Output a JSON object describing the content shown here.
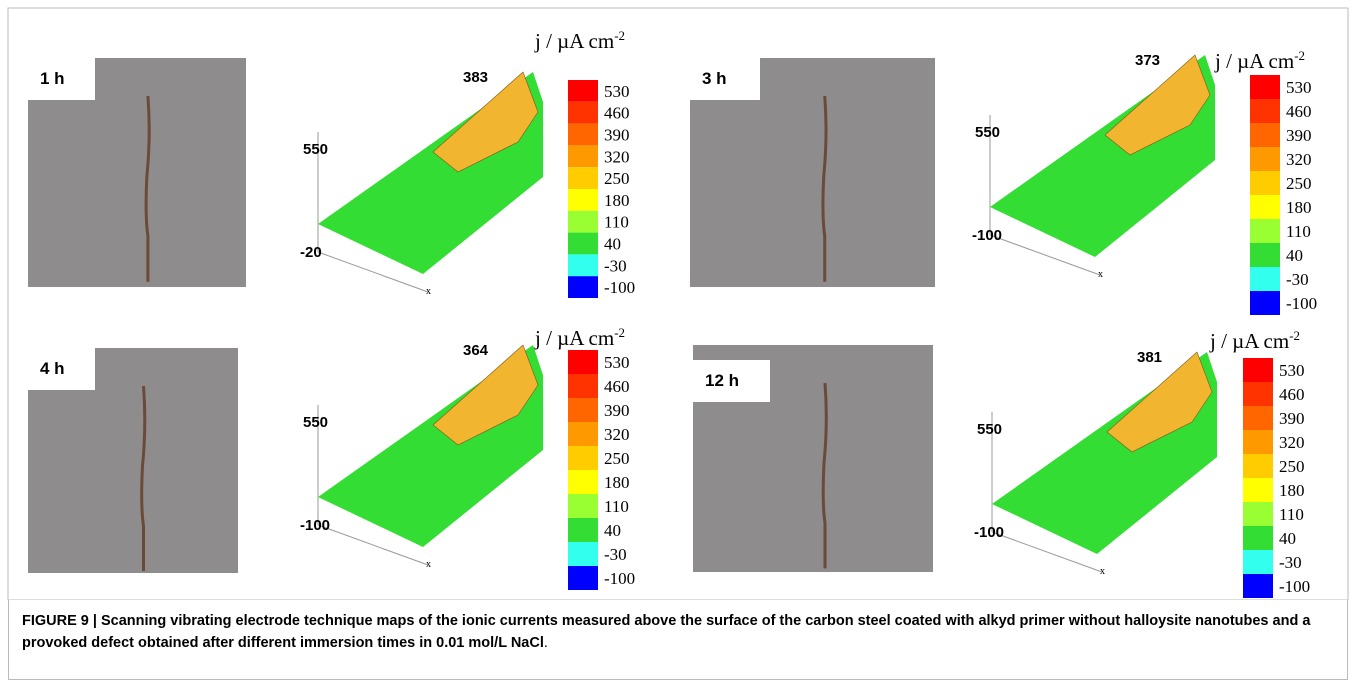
{
  "figure": {
    "panels": [
      {
        "time_label": "1 h",
        "peak_label": 383,
        "z_top": 550,
        "z_bottom": -20,
        "x_axis": "x"
      },
      {
        "time_label": "3 h",
        "peak_label": 373,
        "z_top": 550,
        "z_bottom": -100,
        "x_axis": "x"
      },
      {
        "time_label": "4 h",
        "peak_label": 364,
        "z_top": 550,
        "z_bottom": -100,
        "x_axis": "x"
      },
      {
        "time_label": "12 h",
        "peak_label": 381,
        "z_top": 550,
        "z_bottom": -100,
        "x_axis": "x"
      }
    ],
    "colorbar": {
      "title": "j / µA cm",
      "title_sup": "-2",
      "ticks": [
        530,
        460,
        390,
        320,
        250,
        180,
        110,
        40,
        -30,
        -100
      ],
      "colors": [
        "#ff0000",
        "#ff3300",
        "#ff6600",
        "#ff9900",
        "#ffcc00",
        "#ffff00",
        "#99ff33",
        "#33dd33",
        "#33ffee",
        "#0000ff"
      ]
    },
    "caption": {
      "bold": "FIGURE 9 | Scanning vibrating electrode technique maps of the ionic currents measured above the surface of the carbon steel coated with alkyd primer without halloysite nanotubes and a provoked defect obtained after different immersion times in 0.01 mol/L NaCl",
      "end": "."
    }
  }
}
